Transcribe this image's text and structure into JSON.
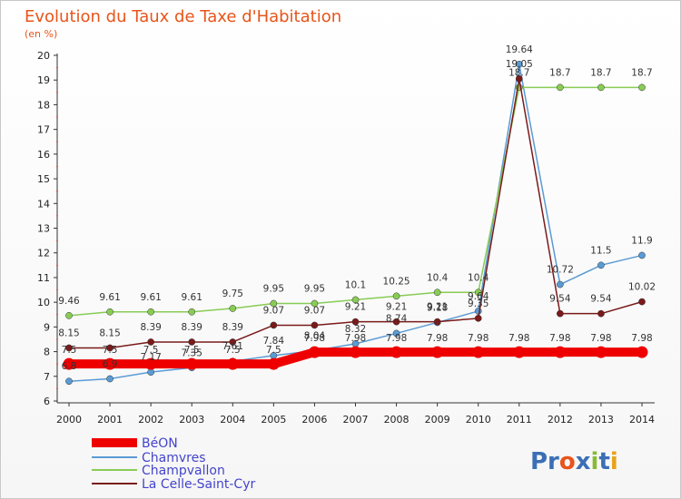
{
  "chart_data": {
    "type": "line",
    "title": "Evolution du Taux de Taxe d'Habitation",
    "subtitle": "(en %)",
    "categories": [
      "2000",
      "2001",
      "2002",
      "2003",
      "2004",
      "2005",
      "2006",
      "2007",
      "2008",
      "2009",
      "2010",
      "2011",
      "2012",
      "2013",
      "2014"
    ],
    "ylim": [
      6,
      20
    ],
    "yticks": [
      "6",
      "7",
      "8",
      "9",
      "10",
      "11",
      "12",
      "13",
      "14",
      "15",
      "16",
      "17",
      "18",
      "19",
      "20"
    ],
    "grid": false,
    "legend_position": "bottom-left",
    "series": [
      {
        "name": "BéON",
        "color": "#ee0000",
        "values": [
          7.5,
          7.5,
          7.5,
          7.5,
          7.5,
          7.5,
          7.98,
          7.98,
          7.98,
          7.98,
          7.98,
          7.98,
          7.98,
          7.98,
          7.98
        ],
        "labels": [
          "7.5",
          "7.5",
          "7.5",
          "7.5",
          "7.5",
          "7.5",
          "7.98",
          "7.98",
          "7.98",
          "7.98",
          "7.98",
          "7.98",
          "7.98",
          "7.98",
          "7.98"
        ]
      },
      {
        "name": "Chamvres",
        "color": "#5a9bd4",
        "values": [
          6.8,
          6.9,
          7.17,
          7.35,
          7.61,
          7.84,
          8.04,
          8.32,
          8.74,
          9.18,
          9.64,
          19.64,
          10.72,
          11.5,
          11.9
        ],
        "labels": [
          "6.8",
          "6.9",
          "7.17",
          "7.35",
          "7.61",
          "7.84",
          "8.04",
          "8.32",
          "8.74",
          "9.18",
          "9.64",
          "19.64",
          "10.72",
          "11.5",
          "11.9"
        ]
      },
      {
        "name": "Champvallon",
        "color": "#88cc55",
        "values": [
          9.46,
          9.61,
          9.61,
          9.61,
          9.75,
          9.95,
          9.95,
          10.1,
          10.25,
          10.4,
          10.4,
          18.7,
          18.7,
          18.7,
          18.7
        ],
        "labels": [
          "9.46",
          "9.61",
          "9.61",
          "9.61",
          "9.75",
          "9.95",
          "9.95",
          "10.1",
          "10.25",
          "10.4",
          "10.4",
          "18.7",
          "18.7",
          "18.7",
          "18.7"
        ]
      },
      {
        "name": "La Celle-Saint-Cyr",
        "color": "#7a1a1a",
        "values": [
          8.15,
          8.15,
          8.39,
          8.39,
          8.39,
          9.07,
          9.07,
          9.21,
          9.21,
          9.21,
          9.35,
          19.05,
          9.54,
          9.54,
          10.02
        ],
        "labels": [
          "8.15",
          "8.15",
          "8.39",
          "8.39",
          "8.39",
          "9.07",
          "9.07",
          "9.21",
          "9.21",
          "9.21",
          "9.35",
          "19.05",
          "9.54",
          "9.54",
          "10.02"
        ]
      }
    ]
  },
  "logo": {
    "text": "Proxiti"
  }
}
